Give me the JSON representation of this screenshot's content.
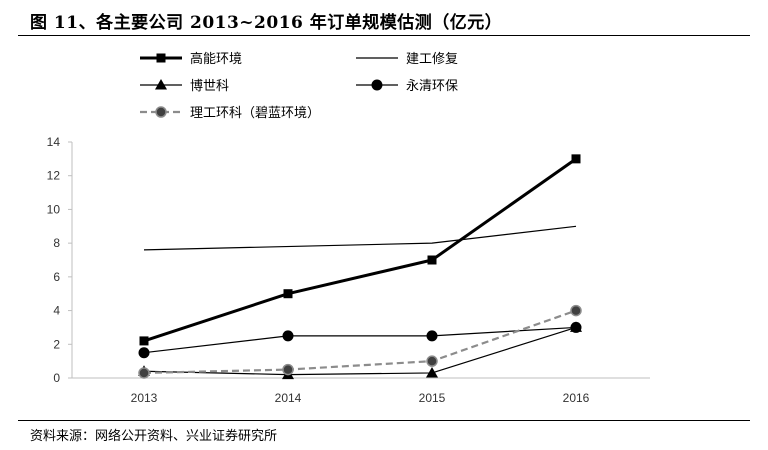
{
  "header": {
    "title": "图 11、各主要公司 2013~2016 年订单规模估测（亿元）"
  },
  "footer": {
    "source": "资料来源：网络公开资料、兴业证券研究所"
  },
  "chart_data": {
    "type": "line",
    "title": "",
    "xlabel": "",
    "ylabel": "",
    "ylim": [
      0,
      14
    ],
    "yticks": [
      0,
      2,
      4,
      6,
      8,
      10,
      12,
      14
    ],
    "categories": [
      "2013",
      "2014",
      "2015",
      "2016"
    ],
    "grid": false,
    "legend_position": "top",
    "series": [
      {
        "name": "高能环境",
        "values": [
          2.2,
          5.0,
          7.0,
          13.0
        ],
        "style": "thick-solid",
        "marker": "square",
        "color": "#000000"
      },
      {
        "name": "建工修复",
        "values": [
          7.6,
          null,
          8.0,
          9.0
        ],
        "style": "thin-solid",
        "marker": "none",
        "color": "#000000"
      },
      {
        "name": "博世科",
        "values": [
          0.4,
          0.2,
          0.3,
          3.0
        ],
        "style": "thin-solid",
        "marker": "triangle",
        "color": "#000000"
      },
      {
        "name": "永清环保",
        "values": [
          1.5,
          2.5,
          2.5,
          3.0
        ],
        "style": "thin-solid",
        "marker": "circle",
        "color": "#000000"
      },
      {
        "name": "理工环科（碧蓝环境）",
        "values": [
          0.3,
          0.5,
          1.0,
          4.0
        ],
        "style": "dashed",
        "marker": "circle-gray",
        "color": "#808080"
      }
    ]
  }
}
